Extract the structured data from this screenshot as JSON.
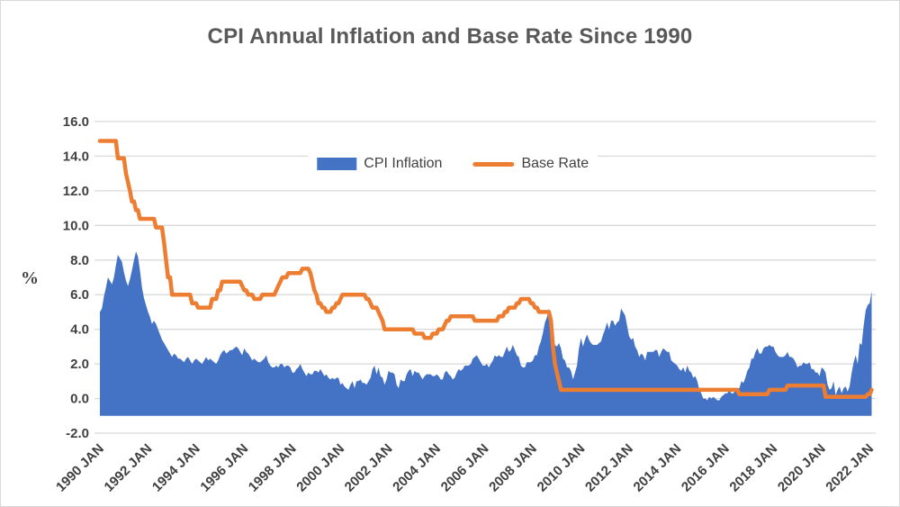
{
  "title": "CPI Annual Inflation and Base Rate Since 1990",
  "legend": {
    "cpi_label": "CPI Inflation",
    "base_label": "Base Rate"
  },
  "y_axis": {
    "label": "%",
    "tick_labels": [
      "16.0",
      "14.0",
      "12.0",
      "10.0",
      "8.0",
      "6.0",
      "4.0",
      "2.0",
      "0.0",
      "-2.0"
    ]
  },
  "x_axis": {
    "tick_labels": [
      "1990 JAN",
      "1992 JAN",
      "1994 JAN",
      "1996 JAN",
      "1998 JAN",
      "2000 JAN",
      "2002 JAN",
      "2004 JAN",
      "2006 JAN",
      "2008 JAN",
      "2010 JAN",
      "2012 JAN",
      "2014 JAN",
      "2016 JAN",
      "2018 JAN",
      "2020 JAN",
      "2022 JAN"
    ],
    "tick_every_months": 24
  },
  "colors": {
    "cpi_fill": "#4472C4",
    "base_line": "#ED7D31",
    "gridline": "#D9D9D9",
    "text": "#404040",
    "title": "#595959"
  },
  "chart_data": {
    "type": "area",
    "subtype": "area series with overlaid line series",
    "title": "CPI Annual Inflation and Base Rate Since 1990",
    "xlabel": "",
    "ylabel": "%",
    "ylim": [
      -2,
      16
    ],
    "grid": true,
    "legend_position": "top-center-inside",
    "x_start": "1990-01",
    "x_end": "2022-02",
    "frequency": "monthly",
    "x_tick_every": 24,
    "area_baseline": -1.0,
    "series": [
      {
        "name": "CPI Inflation",
        "type": "area",
        "color": "#4472C4",
        "values": [
          5.0,
          5.2,
          5.9,
          6.4,
          7.0,
          6.8,
          6.6,
          7.0,
          7.7,
          8.3,
          8.1,
          7.9,
          7.3,
          6.8,
          6.5,
          6.9,
          7.4,
          8.0,
          8.5,
          8.2,
          7.4,
          6.4,
          5.8,
          5.4,
          5.0,
          4.7,
          4.3,
          4.5,
          4.3,
          4.0,
          3.7,
          3.4,
          3.2,
          3.0,
          2.8,
          2.6,
          2.4,
          2.6,
          2.5,
          2.3,
          2.3,
          2.2,
          2.1,
          2.3,
          2.4,
          2.2,
          2.0,
          2.2,
          2.3,
          2.2,
          2.1,
          2.0,
          2.2,
          2.4,
          2.2,
          2.3,
          2.2,
          2.1,
          2.0,
          2.2,
          2.5,
          2.7,
          2.8,
          2.6,
          2.7,
          2.8,
          2.8,
          2.9,
          3.0,
          2.9,
          2.7,
          2.5,
          2.9,
          2.7,
          2.6,
          2.4,
          2.2,
          2.3,
          2.2,
          2.1,
          2.1,
          2.2,
          2.3,
          2.5,
          2.1,
          1.9,
          1.8,
          1.8,
          1.9,
          1.8,
          2.0,
          2.0,
          1.8,
          1.9,
          1.9,
          1.8,
          1.5,
          1.5,
          1.7,
          1.8,
          2.0,
          1.7,
          1.5,
          1.3,
          1.5,
          1.4,
          1.4,
          1.6,
          1.6,
          1.5,
          1.7,
          1.5,
          1.3,
          1.4,
          1.2,
          1.1,
          1.2,
          1.1,
          1.2,
          1.2,
          0.8,
          0.9,
          0.7,
          0.6,
          0.5,
          0.8,
          1.0,
          0.6,
          1.0,
          1.0,
          1.1,
          0.9,
          0.9,
          0.8,
          1.0,
          1.2,
          1.7,
          1.9,
          1.4,
          1.8,
          1.3,
          1.2,
          0.8,
          1.1,
          1.6,
          1.5,
          1.5,
          1.4,
          0.8,
          0.6,
          1.1,
          1.0,
          1.0,
          1.4,
          1.6,
          1.7,
          1.3,
          1.6,
          1.5,
          1.5,
          1.3,
          1.1,
          1.3,
          1.4,
          1.4,
          1.4,
          1.3,
          1.3,
          1.4,
          1.3,
          1.1,
          1.1,
          1.5,
          1.6,
          1.4,
          1.3,
          1.1,
          1.2,
          1.5,
          1.7,
          1.6,
          1.7,
          1.9,
          1.9,
          1.9,
          2.0,
          2.3,
          2.4,
          2.5,
          2.3,
          2.1,
          1.9,
          1.9,
          2.0,
          1.8,
          2.0,
          2.2,
          2.5,
          2.4,
          2.5,
          2.4,
          2.4,
          2.7,
          3.0,
          2.7,
          2.8,
          3.1,
          2.8,
          2.5,
          2.4,
          1.9,
          1.8,
          1.8,
          2.1,
          2.1,
          2.1,
          2.2,
          2.5,
          2.5,
          3.0,
          3.3,
          3.8,
          4.4,
          4.7,
          5.2,
          4.5,
          4.1,
          3.1,
          3.0,
          3.2,
          2.9,
          2.3,
          2.2,
          1.8,
          1.8,
          1.6,
          1.1,
          1.5,
          1.9,
          2.9,
          3.5,
          3.0,
          3.4,
          3.7,
          3.4,
          3.2,
          3.1,
          3.1,
          3.1,
          3.2,
          3.3,
          3.7,
          4.0,
          4.4,
          4.0,
          4.5,
          4.5,
          4.2,
          4.4,
          4.5,
          5.2,
          5.0,
          4.8,
          4.2,
          3.6,
          3.4,
          3.5,
          3.0,
          2.8,
          2.4,
          2.6,
          2.5,
          2.2,
          2.7,
          2.7,
          2.7,
          2.7,
          2.8,
          2.8,
          2.4,
          2.7,
          2.9,
          2.8,
          2.7,
          2.7,
          2.2,
          2.1,
          2.0,
          1.9,
          1.7,
          1.6,
          1.8,
          1.5,
          1.9,
          1.6,
          1.5,
          1.2,
          1.3,
          1.0,
          0.5,
          0.3,
          0.0,
          0.0,
          -0.1,
          0.1,
          0.0,
          0.1,
          0.0,
          -0.1,
          -0.1,
          0.1,
          0.2,
          0.3,
          0.3,
          0.5,
          0.3,
          0.3,
          0.5,
          0.6,
          0.6,
          1.0,
          0.9,
          1.2,
          1.6,
          1.8,
          2.3,
          2.3,
          2.7,
          2.9,
          2.6,
          2.6,
          2.9,
          3.0,
          3.0,
          3.1,
          3.0,
          3.0,
          2.7,
          2.5,
          2.4,
          2.4,
          2.4,
          2.5,
          2.7,
          2.4,
          2.4,
          2.3,
          2.1,
          1.8,
          1.9,
          1.9,
          2.1,
          2.0,
          2.0,
          2.1,
          1.7,
          1.7,
          1.5,
          1.5,
          1.3,
          1.8,
          1.7,
          1.5,
          0.8,
          0.5,
          0.6,
          1.0,
          0.2,
          0.5,
          0.7,
          0.3,
          0.6,
          0.7,
          0.4,
          0.7,
          1.5,
          2.1,
          2.5,
          2.0,
          3.2,
          3.1,
          4.2,
          5.1,
          5.4,
          5.5,
          6.2
        ]
      },
      {
        "name": "Base Rate",
        "type": "line",
        "color": "#ED7D31",
        "values": [
          14.88,
          14.88,
          14.88,
          14.88,
          14.88,
          14.88,
          14.88,
          14.88,
          14.88,
          13.88,
          13.88,
          13.88,
          13.88,
          13.0,
          12.5,
          12.0,
          11.38,
          11.38,
          10.88,
          10.88,
          10.38,
          10.38,
          10.38,
          10.38,
          10.38,
          10.38,
          10.38,
          10.38,
          9.88,
          9.88,
          9.88,
          9.88,
          9.0,
          8.0,
          7.0,
          7.0,
          6.0,
          6.0,
          6.0,
          6.0,
          6.0,
          6.0,
          6.0,
          6.0,
          6.0,
          6.0,
          5.5,
          5.5,
          5.5,
          5.25,
          5.25,
          5.25,
          5.25,
          5.25,
          5.25,
          5.25,
          5.75,
          5.75,
          5.75,
          6.25,
          6.25,
          6.75,
          6.75,
          6.75,
          6.75,
          6.75,
          6.75,
          6.75,
          6.75,
          6.75,
          6.75,
          6.5,
          6.25,
          6.25,
          6.0,
          6.0,
          6.0,
          5.75,
          5.75,
          5.75,
          5.75,
          6.0,
          6.0,
          6.0,
          6.0,
          6.0,
          6.0,
          6.0,
          6.25,
          6.5,
          6.75,
          7.0,
          7.0,
          7.0,
          7.25,
          7.25,
          7.25,
          7.25,
          7.25,
          7.25,
          7.25,
          7.5,
          7.5,
          7.5,
          7.5,
          7.25,
          6.75,
          6.25,
          6.0,
          5.5,
          5.5,
          5.25,
          5.25,
          5.0,
          5.0,
          5.0,
          5.25,
          5.25,
          5.5,
          5.5,
          5.75,
          6.0,
          6.0,
          6.0,
          6.0,
          6.0,
          6.0,
          6.0,
          6.0,
          6.0,
          6.0,
          6.0,
          6.0,
          5.75,
          5.75,
          5.5,
          5.25,
          5.25,
          5.25,
          5.0,
          4.75,
          4.5,
          4.0,
          4.0,
          4.0,
          4.0,
          4.0,
          4.0,
          4.0,
          4.0,
          4.0,
          4.0,
          4.0,
          4.0,
          4.0,
          4.0,
          4.0,
          3.75,
          3.75,
          3.75,
          3.75,
          3.75,
          3.5,
          3.5,
          3.5,
          3.5,
          3.75,
          3.75,
          3.75,
          4.0,
          4.0,
          4.0,
          4.25,
          4.5,
          4.5,
          4.75,
          4.75,
          4.75,
          4.75,
          4.75,
          4.75,
          4.75,
          4.75,
          4.75,
          4.75,
          4.75,
          4.75,
          4.5,
          4.5,
          4.5,
          4.5,
          4.5,
          4.5,
          4.5,
          4.5,
          4.5,
          4.5,
          4.5,
          4.5,
          4.75,
          4.75,
          4.75,
          5.0,
          5.0,
          5.25,
          5.25,
          5.25,
          5.25,
          5.5,
          5.5,
          5.75,
          5.75,
          5.75,
          5.75,
          5.75,
          5.5,
          5.5,
          5.25,
          5.25,
          5.0,
          5.0,
          5.0,
          5.0,
          5.0,
          5.0,
          4.5,
          3.0,
          2.0,
          1.5,
          1.0,
          0.5,
          0.5,
          0.5,
          0.5,
          0.5,
          0.5,
          0.5,
          0.5,
          0.5,
          0.5,
          0.5,
          0.5,
          0.5,
          0.5,
          0.5,
          0.5,
          0.5,
          0.5,
          0.5,
          0.5,
          0.5,
          0.5,
          0.5,
          0.5,
          0.5,
          0.5,
          0.5,
          0.5,
          0.5,
          0.5,
          0.5,
          0.5,
          0.5,
          0.5,
          0.5,
          0.5,
          0.5,
          0.5,
          0.5,
          0.5,
          0.5,
          0.5,
          0.5,
          0.5,
          0.5,
          0.5,
          0.5,
          0.5,
          0.5,
          0.5,
          0.5,
          0.5,
          0.5,
          0.5,
          0.5,
          0.5,
          0.5,
          0.5,
          0.5,
          0.5,
          0.5,
          0.5,
          0.5,
          0.5,
          0.5,
          0.5,
          0.5,
          0.5,
          0.5,
          0.5,
          0.5,
          0.5,
          0.5,
          0.5,
          0.5,
          0.5,
          0.5,
          0.5,
          0.5,
          0.5,
          0.5,
          0.5,
          0.5,
          0.5,
          0.5,
          0.5,
          0.5,
          0.5,
          0.5,
          0.25,
          0.25,
          0.25,
          0.25,
          0.25,
          0.25,
          0.25,
          0.25,
          0.25,
          0.25,
          0.25,
          0.25,
          0.25,
          0.25,
          0.25,
          0.5,
          0.5,
          0.5,
          0.5,
          0.5,
          0.5,
          0.5,
          0.5,
          0.5,
          0.75,
          0.75,
          0.75,
          0.75,
          0.75,
          0.75,
          0.75,
          0.75,
          0.75,
          0.75,
          0.75,
          0.75,
          0.75,
          0.75,
          0.75,
          0.75,
          0.75,
          0.75,
          0.75,
          0.1,
          0.1,
          0.1,
          0.1,
          0.1,
          0.1,
          0.1,
          0.1,
          0.1,
          0.1,
          0.1,
          0.1,
          0.1,
          0.1,
          0.1,
          0.1,
          0.1,
          0.1,
          0.1,
          0.1,
          0.1,
          0.25,
          0.25,
          0.5
        ]
      }
    ]
  }
}
